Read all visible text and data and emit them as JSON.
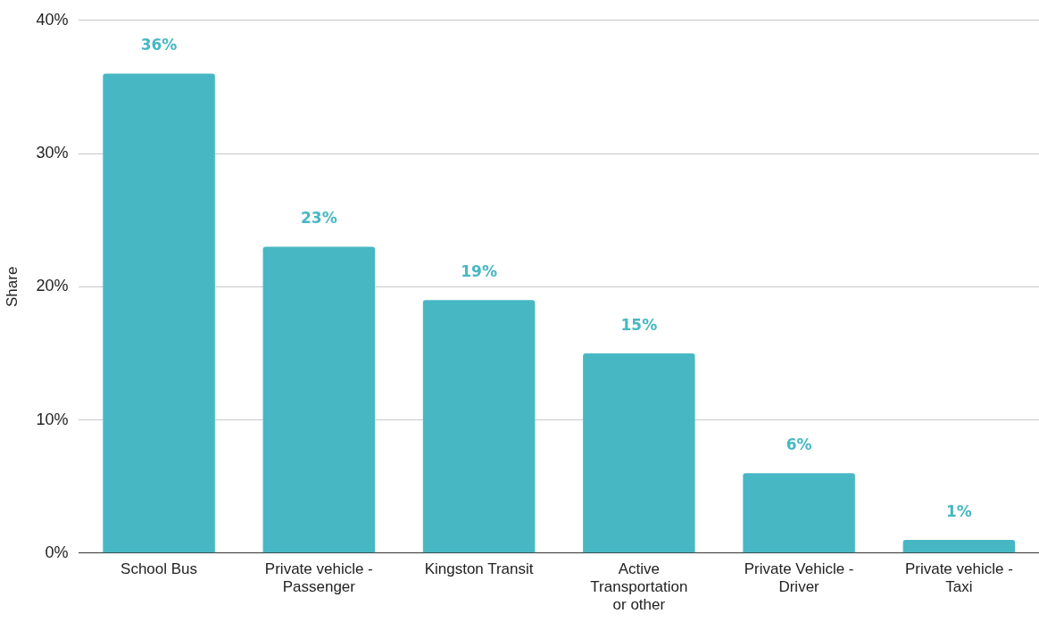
{
  "chart_data": {
    "type": "bar",
    "ylabel": "Share",
    "categories": [
      "School Bus",
      "Private vehicle - Passenger",
      "Kingston Transit",
      "Active Transportation or other",
      "Private Vehicle - Driver",
      "Private vehicle - Taxi"
    ],
    "values": [
      36,
      23,
      19,
      15,
      6,
      1
    ],
    "value_labels": [
      "36%",
      "23%",
      "19%",
      "15%",
      "6%",
      "1%"
    ],
    "color": "#47b8c3",
    "ylim": [
      0,
      40
    ],
    "yticks": [
      {
        "value": 0,
        "label": "0%"
      },
      {
        "value": 10,
        "label": "10%"
      },
      {
        "value": 20,
        "label": "20%"
      },
      {
        "value": 30,
        "label": "30%"
      },
      {
        "value": 40,
        "label": "40%"
      }
    ],
    "grid": "y",
    "legend": false
  }
}
